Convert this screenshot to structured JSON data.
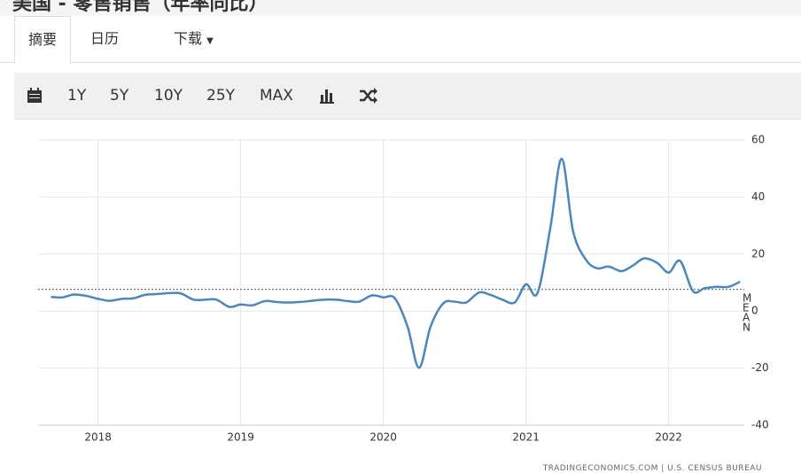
{
  "header": {
    "title": "美国 - 零售销售（年率同比）"
  },
  "tabs": [
    "摘要",
    "日历",
    "下载"
  ],
  "toolbar": [
    "1Y",
    "5Y",
    "10Y",
    "25Y",
    "MAX"
  ],
  "chart_data": {
    "type": "line",
    "x": [
      2017.67,
      2017.75,
      2017.83,
      2017.92,
      2018.0,
      2018.08,
      2018.17,
      2018.25,
      2018.33,
      2018.42,
      2018.5,
      2018.58,
      2018.67,
      2018.75,
      2018.83,
      2018.92,
      2019.0,
      2019.08,
      2019.17,
      2019.25,
      2019.33,
      2019.42,
      2019.5,
      2019.58,
      2019.67,
      2019.75,
      2019.83,
      2019.92,
      2020.0,
      2020.08,
      2020.17,
      2020.25,
      2020.33,
      2020.42,
      2020.5,
      2020.58,
      2020.67,
      2020.75,
      2020.83,
      2020.92,
      2021.0,
      2021.08,
      2021.17,
      2021.25,
      2021.33,
      2021.42,
      2021.5,
      2021.58,
      2021.67,
      2021.75,
      2021.83,
      2021.92,
      2022.0,
      2022.08,
      2022.17,
      2022.25,
      2022.33,
      2022.42,
      2022.5
    ],
    "series": [
      {
        "color": "#4a87be",
        "values": [
          5.0,
          4.8,
          5.8,
          5.3,
          4.3,
          3.6,
          4.3,
          4.5,
          5.7,
          6.0,
          6.3,
          6.2,
          4.0,
          4.0,
          4.0,
          1.5,
          2.3,
          2.0,
          3.5,
          3.2,
          3.0,
          3.2,
          3.6,
          4.0,
          4.0,
          3.5,
          3.3,
          5.5,
          4.8,
          4.5,
          -5.5,
          -19.9,
          -5.6,
          2.7,
          3.3,
          3.0,
          6.5,
          5.7,
          4.1,
          3.0,
          9.4,
          6.3,
          29.0,
          53.4,
          28.0,
          18.0,
          15.0,
          15.6,
          14.0,
          16.0,
          18.5,
          16.9,
          13.5,
          17.6,
          7.0,
          8.0,
          8.5,
          8.5,
          10.3
        ]
      }
    ],
    "xlim": [
      2017.58,
      2022.53
    ],
    "xticks": [
      2018,
      2019,
      2020,
      2021,
      2022
    ],
    "ylim": [
      -40,
      60
    ],
    "yticks": [
      -40,
      -20,
      0,
      20,
      40,
      60
    ],
    "grid": true,
    "reference_line": {
      "value": 7.6,
      "label": "MEAN"
    }
  },
  "source": "TRADINGECONOMICS.COM | U.S. CENSUS BUREAU"
}
